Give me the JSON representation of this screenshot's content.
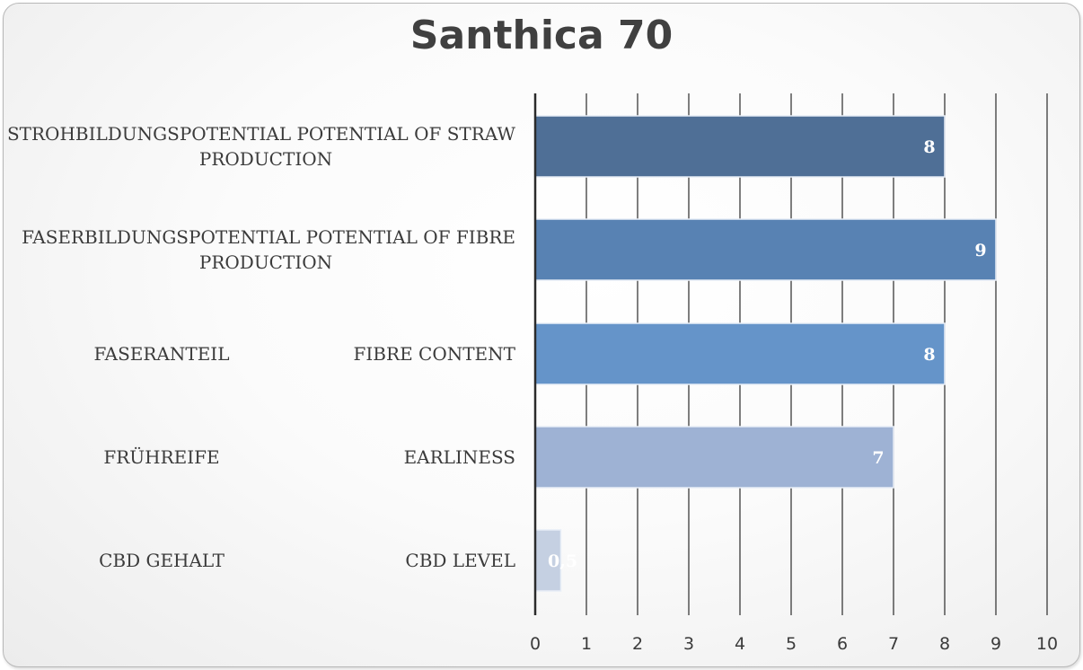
{
  "chart_data": {
    "type": "bar",
    "orientation": "horizontal",
    "title": "Santhica 70",
    "categories": [
      {
        "de": "STROHBILDUNGSPOTENTIAL",
        "en": "POTENTIAL OF STRAW PRODUCTION",
        "lines": [
          "STROHBILDUNGSPOTENTIAL POTENTIAL OF STRAW",
          "PRODUCTION"
        ]
      },
      {
        "de": "FASERBILDUNGSPOTENTIAL",
        "en": "POTENTIAL OF FIBRE PRODUCTION",
        "lines": [
          "FASERBILDUNGSPOTENTIAL POTENTIAL OF FIBRE",
          "PRODUCTION"
        ]
      },
      {
        "de": "FASERANTEIL",
        "en": "FIBRE CONTENT",
        "lines": null
      },
      {
        "de": "FRÜHREIFE",
        "en": "EARLINESS",
        "lines": null
      },
      {
        "de": "CBD GEHALT",
        "en": "CBD LEVEL",
        "lines": null
      }
    ],
    "values": [
      8,
      9,
      8,
      7,
      0.5
    ],
    "data_labels": [
      "8",
      "9",
      "8",
      "7",
      "0,5"
    ],
    "colors": [
      "#4f6f96",
      "#5882b3",
      "#6594c9",
      "#9eb2d4",
      "#c5d0e2"
    ],
    "xlim": [
      0,
      10
    ],
    "xticks": [
      "0",
      "1",
      "2",
      "3",
      "4",
      "5",
      "6",
      "7",
      "8",
      "9",
      "10"
    ],
    "grid": "vertical",
    "xlabel": "",
    "ylabel": ""
  }
}
